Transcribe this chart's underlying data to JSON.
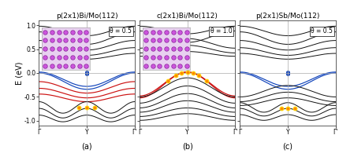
{
  "titles": [
    "p(2x1)Bi/Mo(112)",
    "c(2x1)Bi/Mo(112)",
    "p(2x1)Sb/Mo(112)"
  ],
  "theta_labels": [
    "θ = 0.5",
    "θ = 1.0",
    "θ = 0.5"
  ],
  "panel_labels": [
    "(a)",
    "(b)",
    "(c)"
  ],
  "ylim": [
    -1.1,
    1.1
  ],
  "ylabel": "E (eV)",
  "xtick_labels": [
    "Γ",
    "Y",
    "Γ'"
  ],
  "background_color": "#ffffff"
}
